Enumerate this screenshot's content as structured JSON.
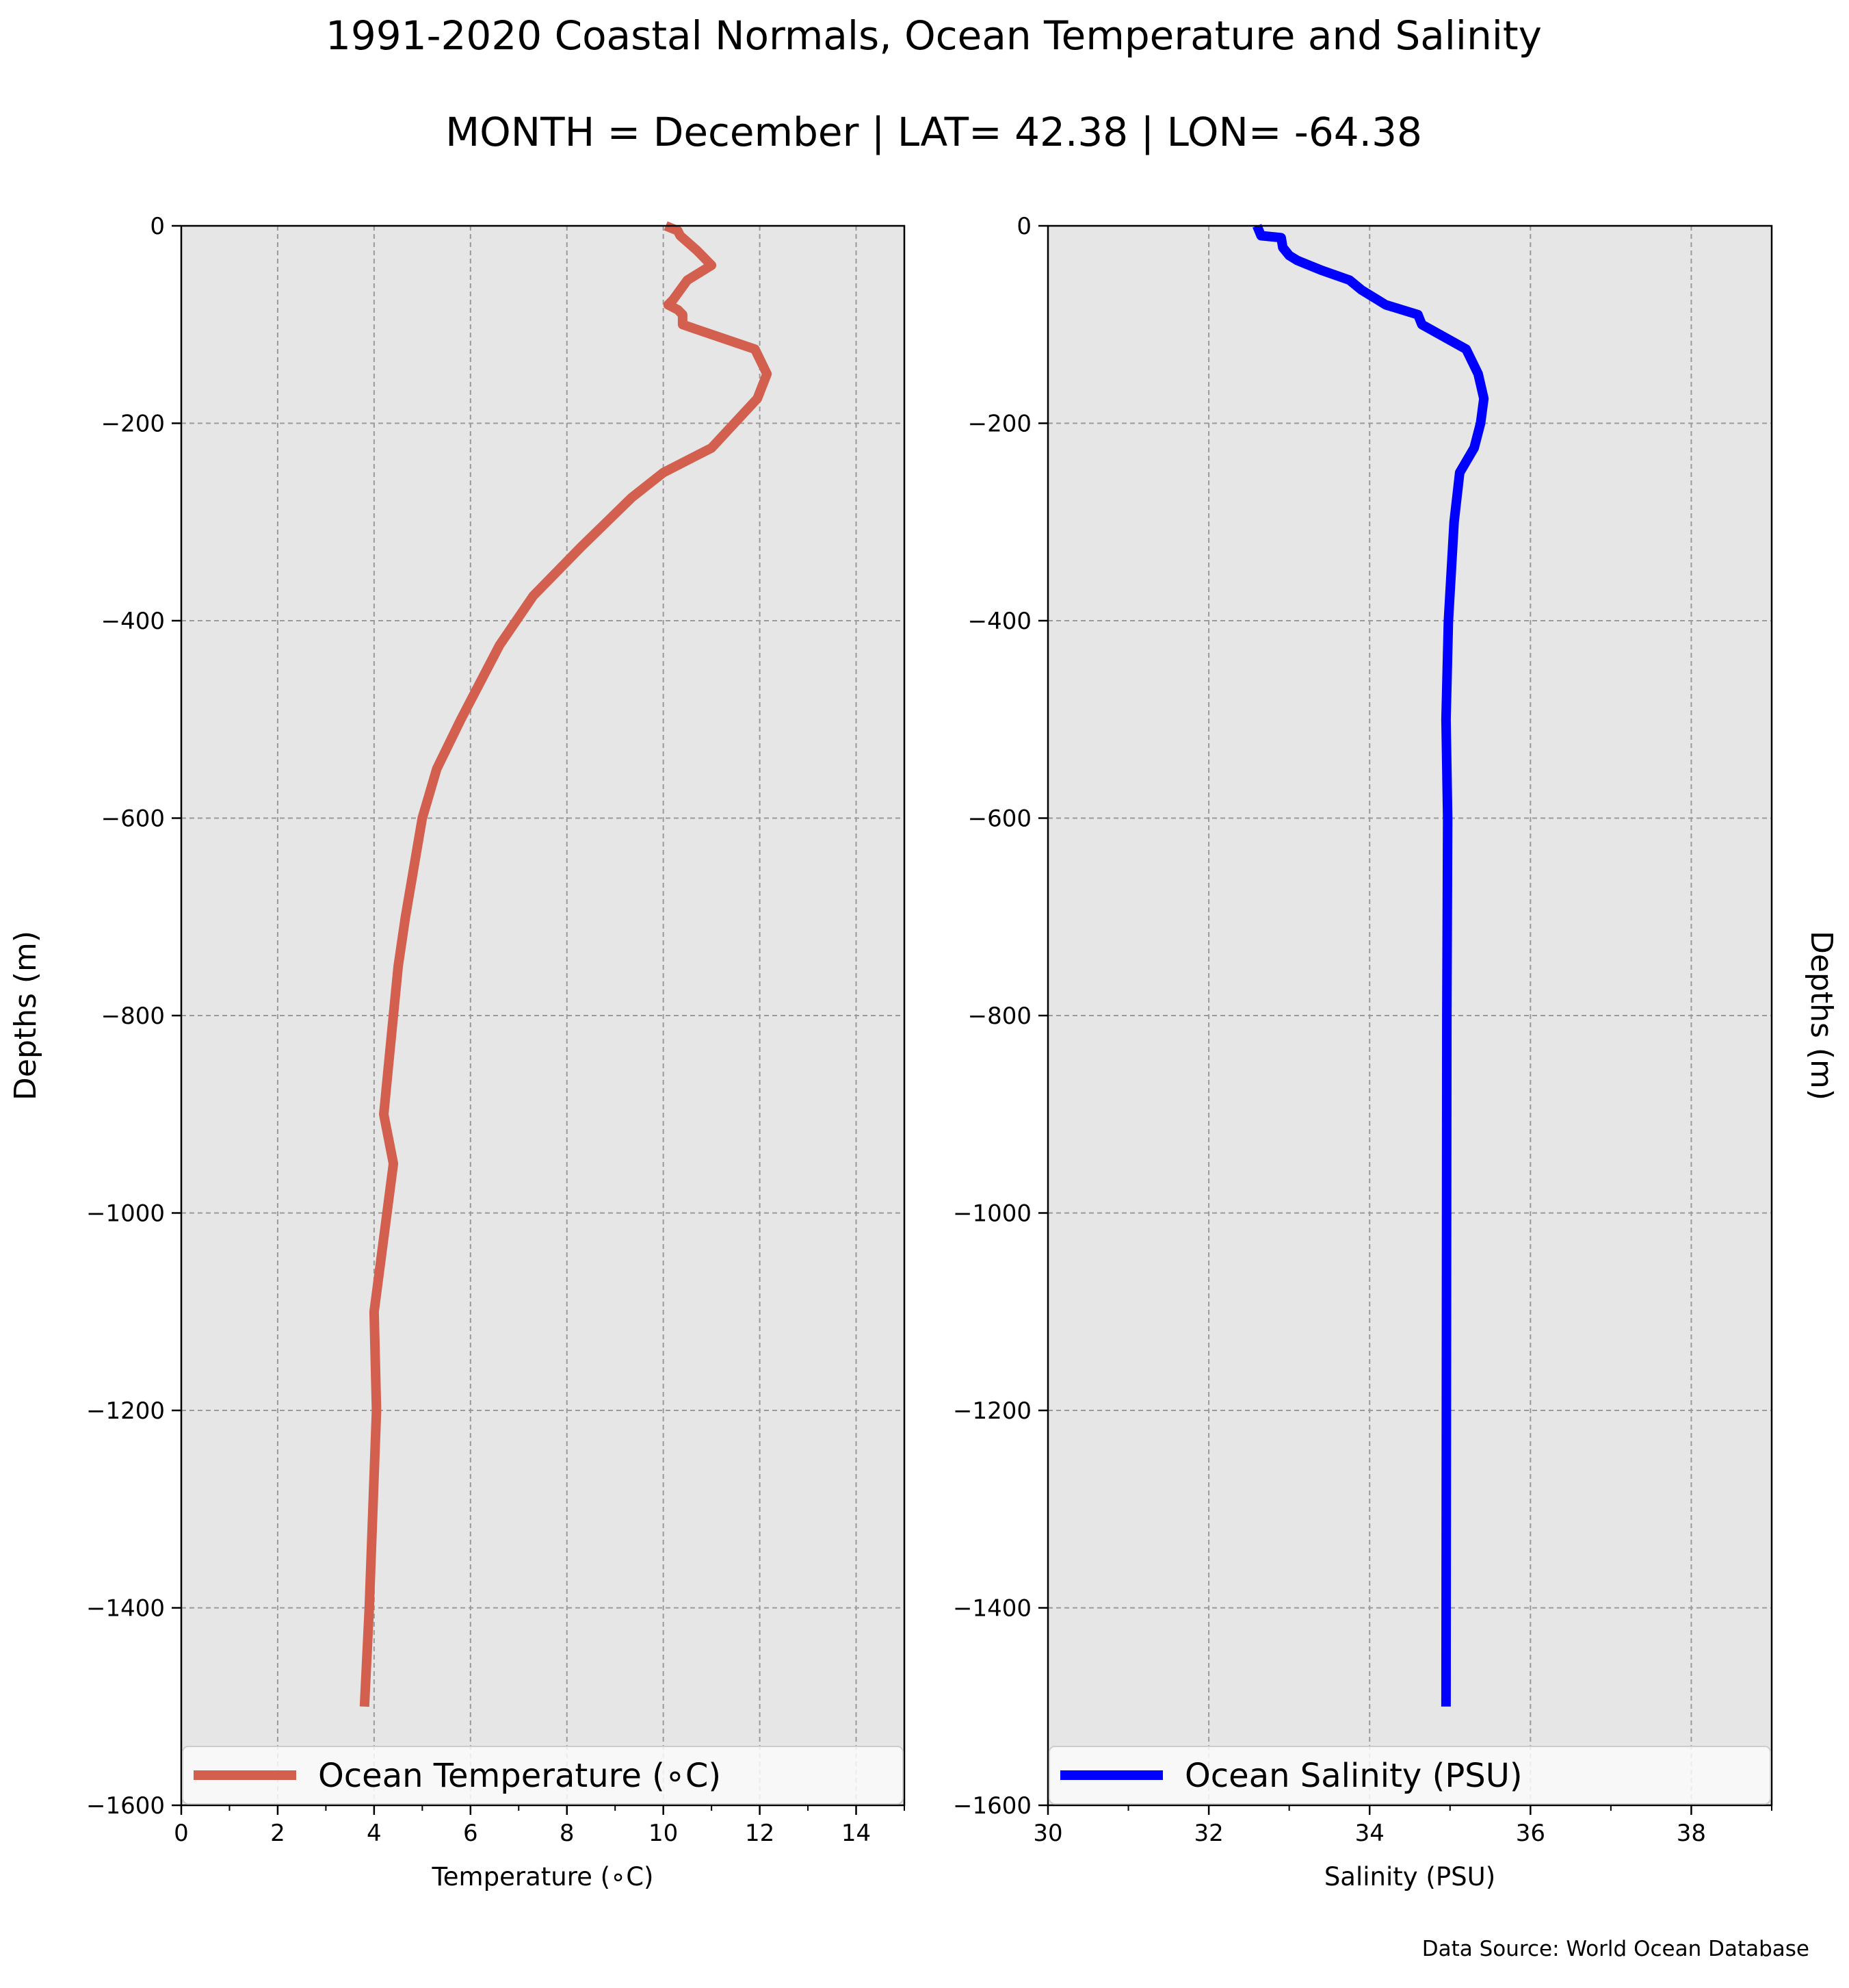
{
  "figure": {
    "title": "1991-2020 Coastal Normals, Ocean Temperature and Salinity",
    "subtitle": "MONTH = December | LAT= 42.38 | LON= -64.38",
    "source": "Data Source: World Ocean Database",
    "plot_background": "#e6e6e6"
  },
  "chart_data": [
    {
      "type": "line",
      "orientation": "vertical-profile",
      "xlabel": "Temperature (∘C)",
      "ylabel": "Depths (m)",
      "xlim": [
        0,
        15
      ],
      "ylim": [
        -1600,
        0
      ],
      "x_ticks": [
        0,
        2,
        4,
        6,
        8,
        10,
        12,
        14
      ],
      "y_ticks": [
        0,
        -200,
        -400,
        -600,
        -800,
        -1000,
        -1200,
        -1400,
        -1600
      ],
      "y_tick_labels": [
        "0",
        "−200",
        "−400",
        "−600",
        "−800",
        "−1000",
        "−1200",
        "−1400",
        "−1600"
      ],
      "grid": true,
      "legend_position": "bottom",
      "series": [
        {
          "name": "Ocean Temperature (∘C)",
          "color": "#d35f4f",
          "x": [
            10.05,
            10.3,
            10.35,
            10.7,
            11.0,
            10.5,
            10.2,
            10.1,
            10.3,
            10.4,
            10.4,
            11.9,
            12.15,
            11.95,
            11.0,
            10.0,
            9.35,
            8.3,
            7.3,
            6.6,
            5.8,
            5.3,
            5.0,
            4.65,
            4.5,
            4.3,
            4.2,
            4.4,
            4.0,
            4.05,
            3.9,
            3.8
          ],
          "y": [
            0,
            -5,
            -10,
            -25,
            -40,
            -55,
            -75,
            -80,
            -85,
            -90,
            -100,
            -125,
            -150,
            -175,
            -225,
            -250,
            -275,
            -325,
            -375,
            -425,
            -500,
            -550,
            -600,
            -700,
            -750,
            -850,
            -900,
            -950,
            -1100,
            -1200,
            -1400,
            -1500
          ]
        }
      ]
    },
    {
      "type": "line",
      "orientation": "vertical-profile",
      "xlabel": "Salinity (PSU)",
      "ylabel": "Depths (m)",
      "xlim": [
        30,
        39
      ],
      "ylim": [
        -1600,
        0
      ],
      "x_ticks": [
        30,
        32,
        34,
        36,
        38
      ],
      "y_ticks": [
        0,
        -200,
        -400,
        -600,
        -800,
        -1000,
        -1200,
        -1400,
        -1600
      ],
      "y_tick_labels": [
        "0",
        "−200",
        "−400",
        "−600",
        "−800",
        "−1000",
        "−1200",
        "−1400",
        "−1600"
      ],
      "grid": true,
      "legend_position": "bottom",
      "series": [
        {
          "name": "Ocean Salinity (PSU)",
          "color": "#0000ff",
          "x": [
            32.6,
            32.65,
            32.9,
            32.92,
            33.0,
            33.1,
            33.4,
            33.75,
            33.9,
            34.1,
            34.2,
            34.6,
            34.65,
            35.2,
            35.35,
            35.42,
            35.38,
            35.3,
            35.12,
            35.05,
            34.98,
            34.95,
            34.97,
            34.96,
            34.95
          ],
          "y": [
            0,
            -10,
            -12,
            -22,
            -30,
            -35,
            -45,
            -55,
            -65,
            -75,
            -80,
            -90,
            -100,
            -125,
            -150,
            -175,
            -200,
            -225,
            -250,
            -300,
            -400,
            -500,
            -600,
            -800,
            -1500
          ]
        }
      ]
    }
  ]
}
